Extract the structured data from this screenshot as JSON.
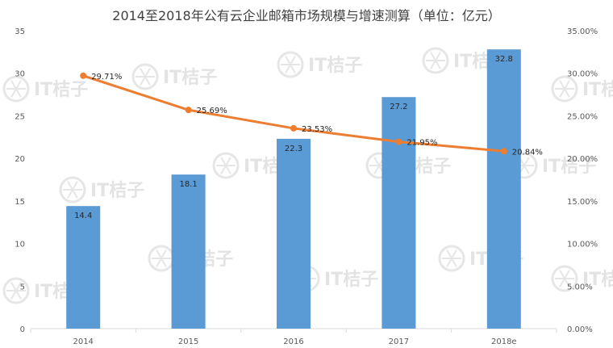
{
  "chart_data": {
    "type": "bar",
    "title": "2014至2018年公有云企业邮箱市场规模与增速测算（单位：亿元）",
    "categories": [
      "2014",
      "2015",
      "2016",
      "2017",
      "2018e"
    ],
    "series": [
      {
        "type": "bar",
        "values": [
          14.4,
          18.1,
          22.3,
          27.2,
          32.8
        ],
        "color": "#5b9bd5"
      },
      {
        "type": "line",
        "axis": "right",
        "values": [
          29.71,
          25.69,
          23.53,
          21.95,
          20.84
        ],
        "color": "#ed7d31"
      }
    ],
    "value_labels": [
      "14.4",
      "18.1",
      "22.3",
      "27.2",
      "32.8"
    ],
    "growth_labels": [
      "29.71%",
      "25.69%",
      "23.53%",
      "21.95%",
      "20.84%"
    ],
    "y_left": {
      "ylim": [
        0,
        35
      ],
      "ticks": [
        "0",
        "5",
        "10",
        "15",
        "20",
        "25",
        "30",
        "35"
      ]
    },
    "y_right": {
      "ylim": [
        0,
        35
      ],
      "unit": "%",
      "ticks": [
        "0.00%",
        "5.00%",
        "10.00%",
        "15.00%",
        "20.00%",
        "25.00%",
        "30.00%",
        "35.00%"
      ]
    },
    "grid": false,
    "legend": "none"
  },
  "watermark": {
    "text": "IT桔子",
    "icon": "orange-slice-icon"
  }
}
